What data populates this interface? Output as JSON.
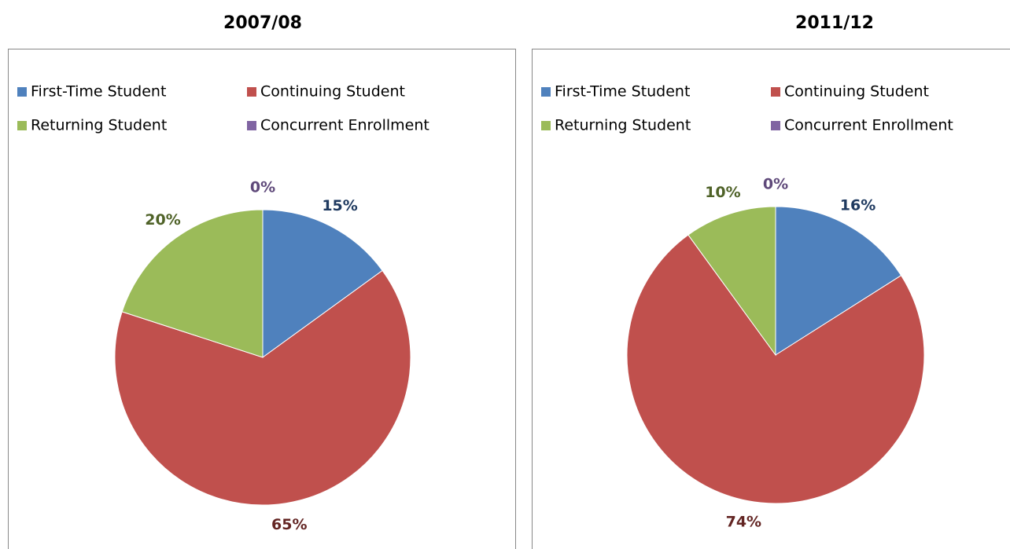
{
  "chart_data": [
    {
      "type": "pie",
      "title": "2007/08",
      "categories": [
        "First-Time Student",
        "Continuing Student",
        "Returning Student",
        "Concurrent Enrollment"
      ],
      "values": [
        15,
        65,
        20,
        0
      ],
      "value_labels": [
        "15%",
        "65%",
        "20%",
        "0%"
      ],
      "colors": [
        "#4f81bd",
        "#c0504d",
        "#9bbb59",
        "#8064a2"
      ],
      "label_colors": [
        "#1f3a60",
        "#632523",
        "#4f6228",
        "#5f497a"
      ]
    },
    {
      "type": "pie",
      "title": "2011/12",
      "categories": [
        "First-Time Student",
        "Continuing Student",
        "Returning Student",
        "Concurrent Enrollment"
      ],
      "values": [
        16,
        74,
        10,
        0
      ],
      "value_labels": [
        "16%",
        "74%",
        "10%",
        "0%"
      ],
      "colors": [
        "#4f81bd",
        "#c0504d",
        "#9bbb59",
        "#8064a2"
      ],
      "label_colors": [
        "#1f3a60",
        "#632523",
        "#4f6228",
        "#5f497a"
      ]
    }
  ]
}
